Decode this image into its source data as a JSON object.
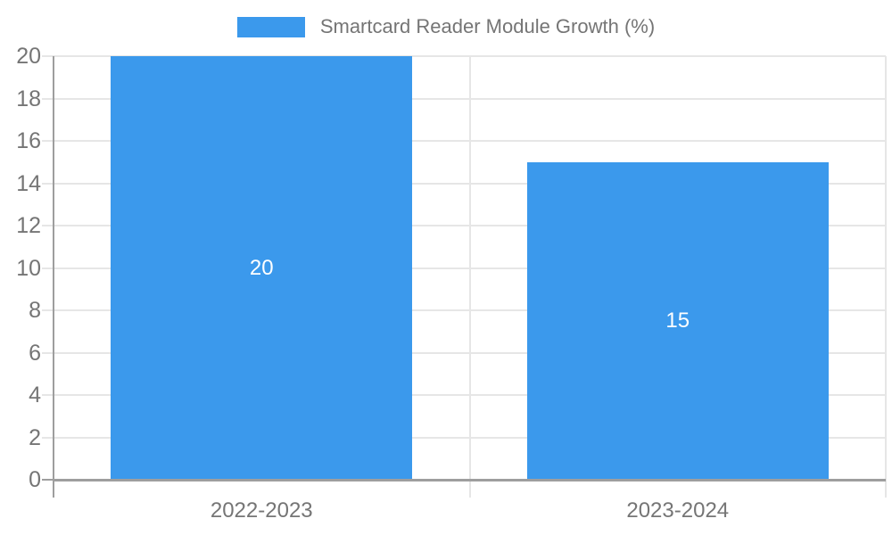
{
  "chart_data": {
    "type": "bar",
    "title": "Smartcard Reader Module Growth (%)",
    "legend": {
      "position": "top",
      "items": [
        {
          "label": "Smartcard Reader Module Growth (%)",
          "color": "#3b99ec"
        }
      ]
    },
    "categories": [
      "2022-2023",
      "2023-2024"
    ],
    "series": [
      {
        "name": "Smartcard Reader Module Growth (%)",
        "color": "#3b99ec",
        "values": [
          20,
          15
        ]
      }
    ],
    "bar_value_labels": [
      "20",
      "15"
    ],
    "xlabel": "",
    "ylabel": "",
    "ylim": [
      0,
      20
    ],
    "ytick_step": 2,
    "grid": true,
    "colors": {
      "bar": "#3b99ec",
      "gridline": "#e6e6e6",
      "axis": "#9e9e9e",
      "tick_text": "#757575",
      "bar_label_text": "#ffffff",
      "background": "#ffffff"
    }
  }
}
